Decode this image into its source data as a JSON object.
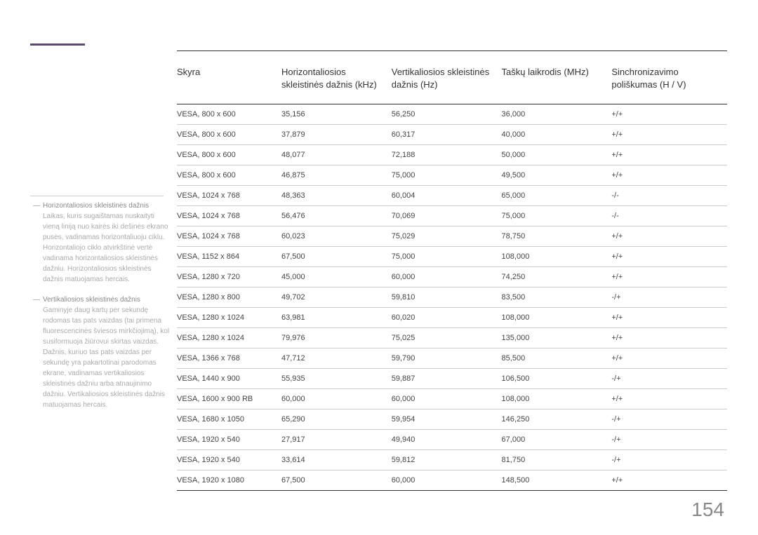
{
  "page_number": "154",
  "sidebar": {
    "items": [
      {
        "title": "Horizontaliosios skleistinės dažnis",
        "text": "Laikas, kuris sugaištamas nuskaityti vieną liniją nuo kairės iki dešinės ekrano pusės, vadinamas horizontaliuoju ciklu. Horizontaliojo ciklo atvirkštinė vertė vadinama horizontaliosios skleistinės dažniu. Horizontaliosios skleistinės dažnis matuojamas hercais."
      },
      {
        "title": "Vertikaliosios skleistinės dažnis",
        "text": "Gaminyje daug kartų per sekundę rodomas tas pats vaizdas (tai primena fluorescencinės šviesos mirkčiojimą), kol susiformuoja žiūrovui skirtas vaizdas. Dažnis, kuriuo tas pats vaizdas per sekundę yra pakartotinai parodomas ekrane, vadinamas vertikaliosios skleistinės dažniu arba atnaujinimo dažniu. Vertikaliosios skleistinės dažnis matuojamas hercais."
      }
    ]
  },
  "table": {
    "headers": [
      "Skyra",
      "Horizontaliosios skleistinės dažnis (kHz)",
      "Vertikaliosios skleistinės dažnis (Hz)",
      "Taškų laikrodis (MHz)",
      "Sinchronizavimo poliškumas (H / V)"
    ],
    "rows": [
      [
        "VESA, 800 x 600",
        "35,156",
        "56,250",
        "36,000",
        "+/+"
      ],
      [
        "VESA, 800 x 600",
        "37,879",
        "60,317",
        "40,000",
        "+/+"
      ],
      [
        "VESA, 800 x 600",
        "48,077",
        "72,188",
        "50,000",
        "+/+"
      ],
      [
        "VESA, 800 x 600",
        "46,875",
        "75,000",
        "49,500",
        "+/+"
      ],
      [
        "VESA, 1024 x 768",
        "48,363",
        "60,004",
        "65,000",
        "-/-"
      ],
      [
        "VESA, 1024 x 768",
        "56,476",
        "70,069",
        "75,000",
        "-/-"
      ],
      [
        "VESA, 1024 x 768",
        "60,023",
        "75,029",
        "78,750",
        "+/+"
      ],
      [
        "VESA, 1152 x 864",
        "67,500",
        "75,000",
        "108,000",
        "+/+"
      ],
      [
        "VESA, 1280 x 720",
        "45,000",
        "60,000",
        "74,250",
        "+/+"
      ],
      [
        "VESA, 1280 x 800",
        "49,702",
        "59,810",
        "83,500",
        "-/+"
      ],
      [
        "VESA, 1280 x 1024",
        "63,981",
        "60,020",
        "108,000",
        "+/+"
      ],
      [
        "VESA, 1280 x 1024",
        "79,976",
        "75,025",
        "135,000",
        "+/+"
      ],
      [
        "VESA, 1366 x 768",
        "47,712",
        "59,790",
        "85,500",
        "+/+"
      ],
      [
        "VESA, 1440 x 900",
        "55,935",
        "59,887",
        "106,500",
        "-/+"
      ],
      [
        "VESA, 1600 x 900 RB",
        "60,000",
        "60,000",
        "108,000",
        "+/+"
      ],
      [
        "VESA, 1680 x 1050",
        "65,290",
        "59,954",
        "146,250",
        "-/+"
      ],
      [
        "VESA, 1920 x 540",
        "27,917",
        "49,940",
        "67,000",
        "-/+"
      ],
      [
        "VESA, 1920 x 540",
        "33,614",
        "59,812",
        "81,750",
        "-/+"
      ],
      [
        "VESA, 1920 x 1080",
        "67,500",
        "60,000",
        "148,500",
        "+/+"
      ]
    ]
  },
  "styling": {
    "header_line_color": "#5b4a6b",
    "border_color_strong": "#333333",
    "border_color_light": "#cccccc",
    "text_color": "#333333",
    "sidebar_text_color": "#999999",
    "page_number_color": "#888888",
    "background_color": "#ffffff",
    "header_fontsize": 13,
    "cell_fontsize": 11,
    "sidebar_fontsize": 10,
    "page_number_fontsize": 28
  }
}
